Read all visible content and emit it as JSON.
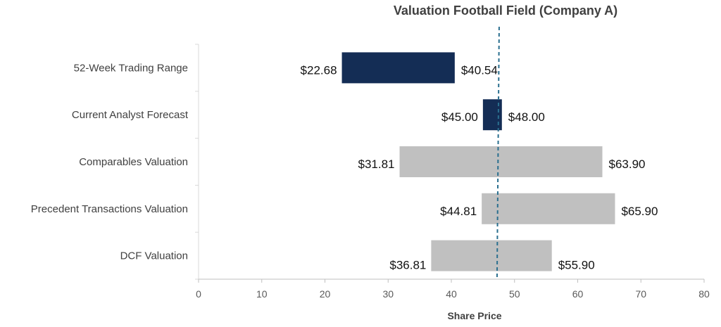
{
  "chart_data": {
    "type": "bar",
    "orientation": "horizontal-floating",
    "title": "Valuation Football Field (Company A)",
    "xlabel": "Share Price",
    "ylabel": "",
    "xlim": [
      0,
      80
    ],
    "xticks": [
      0,
      10,
      20,
      30,
      40,
      50,
      60,
      70,
      80
    ],
    "grid": false,
    "categories": [
      "52-Week Trading Range",
      "Current Analyst Forecast",
      "Comparables Valuation",
      "Precedent Transactions Valuation",
      "DCF Valuation"
    ],
    "low": [
      22.68,
      45.0,
      31.81,
      44.81,
      36.81
    ],
    "high": [
      40.54,
      48.0,
      63.9,
      65.9,
      55.9
    ],
    "low_labels": [
      "$22.68",
      "$45.00",
      "$31.81",
      "$44.81",
      "$36.81"
    ],
    "high_labels": [
      "$40.54",
      "$48.00",
      "$63.90",
      "$65.90",
      "$55.90"
    ],
    "colors": [
      "#142d55",
      "#142d55",
      "#c0c0c0",
      "#c0c0c0",
      "#c0c0c0"
    ],
    "reference_line": {
      "value": 47.4,
      "style": "dashed",
      "color": "#2a6f8f"
    }
  }
}
